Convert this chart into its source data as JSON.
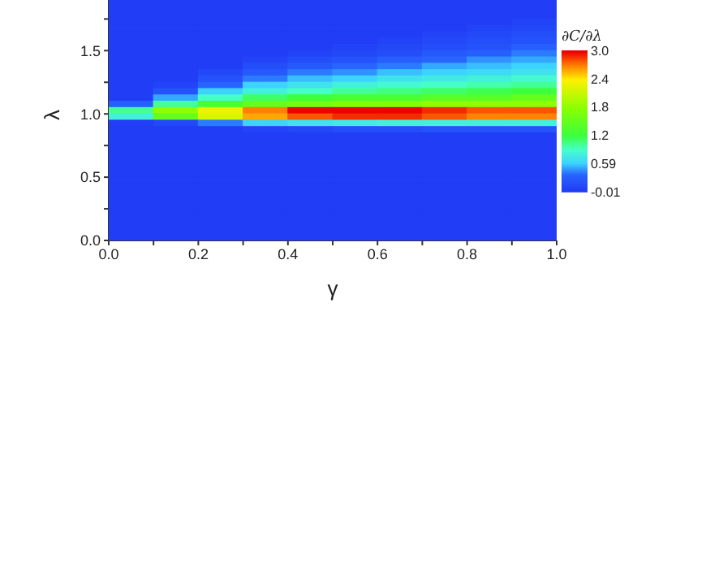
{
  "chart_data": {
    "type": "heatmap",
    "xlabel": "γ",
    "ylabel": "λ",
    "clabel": "∂C/∂λ",
    "xlim": [
      0,
      1
    ],
    "xticks": [
      {
        "value": 0,
        "label": "0.0"
      },
      {
        "value": 0.1,
        "label": null
      },
      {
        "value": 0.2,
        "label": "0.2"
      },
      {
        "value": 0.3,
        "label": null
      },
      {
        "value": 0.4,
        "label": "0.4"
      },
      {
        "value": 0.5,
        "label": null
      },
      {
        "value": 0.6,
        "label": "0.6"
      },
      {
        "value": 0.7,
        "label": null
      },
      {
        "value": 0.8,
        "label": "0.8"
      },
      {
        "value": 0.9,
        "label": null
      },
      {
        "value": 1,
        "label": "1.0"
      }
    ],
    "ylim": [
      0,
      1.9
    ],
    "yticks": [
      {
        "value": 0,
        "label": "0.0"
      },
      {
        "value": 0.25,
        "label": null
      },
      {
        "value": 0.5,
        "label": "0.5"
      },
      {
        "value": 0.75,
        "label": null
      },
      {
        "value": 1,
        "label": "1.0"
      },
      {
        "value": 1.25,
        "label": null
      },
      {
        "value": 1.5,
        "label": "1.5"
      },
      {
        "value": 1.75,
        "label": null
      }
    ],
    "clim": [
      -0.01,
      3.0
    ],
    "cticks": [
      -0.01,
      0.59,
      1.2,
      1.8,
      2.4,
      {
        "value": 3,
        "label": "3.0"
      }
    ],
    "cells": [
      [
        0,
        0,
        0,
        0,
        0,
        0,
        0,
        0,
        0,
        0
      ],
      [
        0,
        0,
        0,
        0,
        0,
        0,
        0,
        0,
        0,
        0
      ],
      [
        0,
        0,
        0,
        0,
        0,
        0,
        0,
        0,
        0,
        0
      ],
      [
        0,
        0,
        0,
        0,
        0,
        0,
        0,
        0,
        0,
        0.05
      ],
      [
        0,
        0,
        0,
        0,
        0,
        0,
        0,
        0,
        0.05,
        0.1
      ],
      [
        0,
        0,
        0,
        0,
        0,
        0,
        0,
        0.05,
        0.1,
        0.15
      ],
      [
        0,
        0,
        0,
        0,
        0,
        0,
        0.05,
        0.1,
        0.15,
        0.2
      ],
      [
        0,
        0,
        0,
        0,
        0,
        0.05,
        0.1,
        0.15,
        0.2,
        0.3
      ],
      [
        0,
        0,
        0,
        0,
        0.05,
        0.1,
        0.15,
        0.25,
        0.3,
        0.4
      ],
      [
        0,
        0,
        0,
        0.05,
        0.15,
        0.2,
        0.3,
        0.35,
        0.45,
        0.5
      ],
      [
        0,
        0,
        0,
        0.15,
        0.25,
        0.35,
        0.4,
        0.5,
        0.55,
        0.6
      ],
      [
        0,
        0,
        0.1,
        0.25,
        0.4,
        0.45,
        0.55,
        0.6,
        0.65,
        0.7
      ],
      [
        0,
        0,
        0.2,
        0.4,
        0.55,
        0.6,
        0.7,
        0.75,
        0.8,
        0.85
      ],
      [
        0,
        0.05,
        0.35,
        0.6,
        0.7,
        0.8,
        0.85,
        0.9,
        0.95,
        1.0
      ],
      [
        0,
        0.2,
        0.6,
        0.8,
        0.9,
        1.0,
        1.05,
        1.1,
        1.15,
        1.2
      ],
      [
        0,
        0.5,
        0.9,
        1.1,
        1.2,
        1.3,
        1.3,
        1.4,
        1.4,
        1.5
      ],
      [
        0.3,
        1.0,
        1.3,
        1.5,
        1.6,
        1.7,
        1.7,
        1.8,
        1.8,
        1.8
      ],
      [
        1.0,
        1.8,
        2.3,
        2.7,
        3.0,
        3.0,
        3.0,
        2.9,
        2.8,
        2.8
      ],
      [
        0.8,
        1.5,
        2.2,
        2.6,
        2.8,
        2.9,
        2.9,
        2.8,
        2.7,
        2.7
      ],
      [
        0,
        0.1,
        0.4,
        0.6,
        0.7,
        0.75,
        0.8,
        0.8,
        0.8,
        0.8
      ],
      [
        0,
        0,
        0,
        0.05,
        0.1,
        0.15,
        0.15,
        0.2,
        0.2,
        0.2
      ],
      [
        0,
        0,
        0,
        0,
        0,
        0,
        0,
        0,
        0,
        0
      ],
      [
        0,
        0,
        0,
        0,
        0,
        0,
        0,
        0,
        0,
        0
      ],
      [
        0,
        0,
        0,
        0,
        0,
        0,
        0,
        0,
        0,
        0
      ],
      [
        0,
        0,
        0,
        0,
        0,
        0,
        0,
        0,
        0,
        0
      ],
      [
        0,
        0,
        0,
        0,
        0,
        0,
        0,
        0,
        0,
        0
      ],
      [
        0,
        0,
        0,
        0,
        0,
        0,
        0,
        0,
        0,
        0
      ],
      [
        0,
        0,
        0,
        0,
        0,
        0,
        0,
        0,
        0,
        0
      ],
      [
        0,
        0,
        0,
        0,
        0,
        0,
        0,
        0,
        0,
        0
      ],
      [
        0,
        0,
        0,
        0,
        0,
        0,
        0,
        0,
        0,
        0
      ],
      [
        0,
        0,
        0,
        0,
        0,
        0,
        0,
        0,
        0,
        0
      ],
      [
        0,
        0,
        0,
        0,
        0,
        0,
        0,
        0,
        0,
        0
      ],
      [
        0,
        0,
        0,
        0,
        0,
        0,
        0,
        0,
        0,
        0
      ],
      [
        0,
        0,
        0,
        0,
        0,
        0,
        0,
        0,
        0,
        0
      ],
      [
        0,
        0,
        0,
        0,
        0,
        0,
        0,
        0,
        0,
        0
      ],
      [
        0,
        0,
        0,
        0,
        0,
        0,
        0,
        0,
        0,
        0
      ],
      [
        0,
        0,
        0,
        0,
        0,
        0,
        0,
        0,
        0,
        0
      ],
      [
        0,
        0,
        0,
        0,
        0,
        0,
        0,
        0,
        0,
        0
      ]
    ]
  }
}
